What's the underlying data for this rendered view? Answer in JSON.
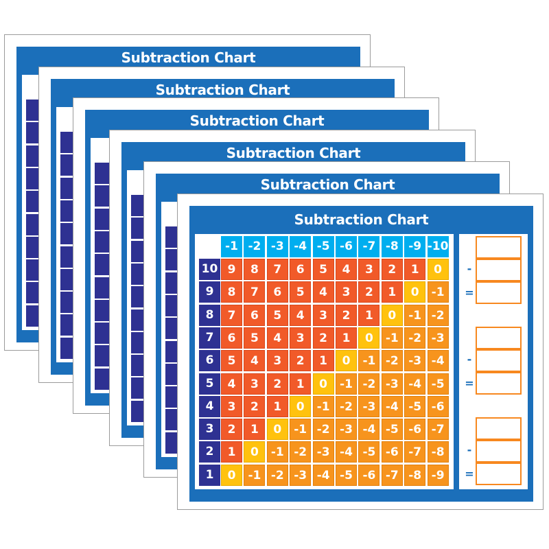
{
  "chart": {
    "title": "Subtraction Chart",
    "column_headers": [
      "-1",
      "-2",
      "-3",
      "-4",
      "-5",
      "-6",
      "-7",
      "-8",
      "-9",
      "-10"
    ],
    "row_headers": [
      "10",
      "9",
      "8",
      "7",
      "6",
      "5",
      "4",
      "3",
      "2",
      "1"
    ],
    "values": [
      [
        "9",
        "8",
        "7",
        "6",
        "5",
        "4",
        "3",
        "2",
        "1",
        "0"
      ],
      [
        "8",
        "7",
        "6",
        "5",
        "4",
        "3",
        "2",
        "1",
        "0",
        "-1"
      ],
      [
        "7",
        "6",
        "5",
        "4",
        "3",
        "2",
        "1",
        "0",
        "-1",
        "-2"
      ],
      [
        "6",
        "5",
        "4",
        "3",
        "2",
        "1",
        "0",
        "-1",
        "-2",
        "-3"
      ],
      [
        "5",
        "4",
        "3",
        "2",
        "1",
        "0",
        "-1",
        "-2",
        "-3",
        "-4"
      ],
      [
        "4",
        "3",
        "2",
        "1",
        "0",
        "-1",
        "-2",
        "-3",
        "-4",
        "-5"
      ],
      [
        "3",
        "2",
        "1",
        "0",
        "-1",
        "-2",
        "-3",
        "-4",
        "-5",
        "-6"
      ],
      [
        "2",
        "1",
        "0",
        "-1",
        "-2",
        "-3",
        "-4",
        "-5",
        "-6",
        "-7"
      ],
      [
        "1",
        "0",
        "-1",
        "-2",
        "-3",
        "-4",
        "-5",
        "-6",
        "-7",
        "-8"
      ],
      [
        "0",
        "-1",
        "-2",
        "-3",
        "-4",
        "-5",
        "-6",
        "-7",
        "-8",
        "-9"
      ]
    ],
    "minus_sign": "-",
    "equals_sign": "=",
    "equation_groups": 3
  },
  "card_count": 6,
  "colors": {
    "panel_blue": "#1b6fba",
    "column_header": "#00aeef",
    "row_header": "#2e3192",
    "positive": "#f15a29",
    "zero": "#ffc20e",
    "negative": "#f7941d",
    "answer_box_border": "#f7881f"
  }
}
